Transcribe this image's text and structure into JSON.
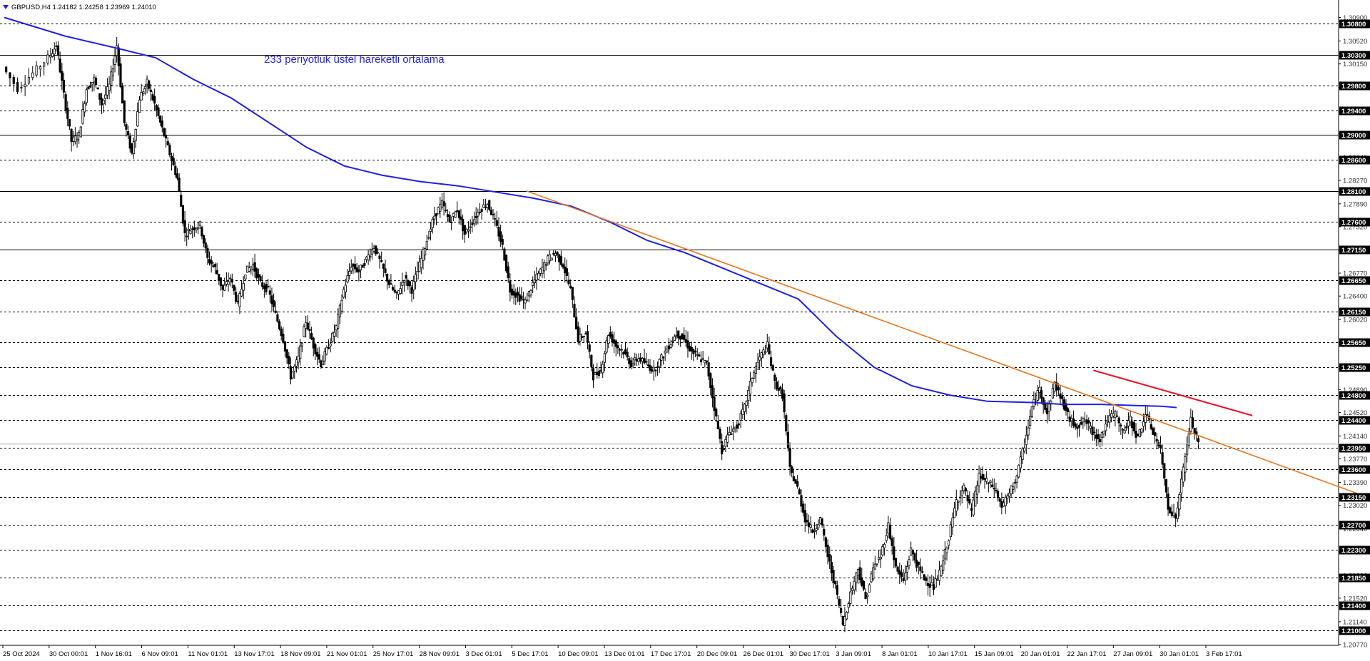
{
  "header": {
    "text": "GBPUSD,H4  1.24182 1.24258 1.23969 1.24010"
  },
  "annotation": {
    "text": "233 periyotluk üstel hareketli ortalama"
  },
  "colors": {
    "ema": "#1f1fe6",
    "trendline_orange": "#e8741c",
    "trendline_red": "#e8112a",
    "candle": "#000000",
    "grid": "#000000",
    "badge_bg": "#000000",
    "badge_text": "#ffffff"
  },
  "chart_data": {
    "type": "candlestick",
    "symbol": "GBPUSD",
    "timeframe": "H4",
    "ylim": [
      1.2077,
      1.3109
    ],
    "grid": "horizontal key levels",
    "y_tick_labels": [
      "1.30900",
      "1.30520",
      "1.30150",
      "1.29770",
      "1.29390",
      "1.29020",
      "1.28640",
      "1.28270",
      "1.27890",
      "1.27520",
      "1.27140",
      "1.26770",
      "1.26400",
      "1.26020",
      "1.25650",
      "1.25270",
      "1.24890",
      "1.24520",
      "1.24140",
      "1.23770",
      "1.23390",
      "1.23020",
      "1.22640",
      "1.22270",
      "1.21890",
      "1.21520",
      "1.21140",
      "1.20770"
    ],
    "levels": [
      {
        "value": 1.308,
        "label": "1.30800",
        "style": "dashed"
      },
      {
        "value": 1.303,
        "label": "1.30300",
        "style": "solid"
      },
      {
        "value": 1.298,
        "label": "1.29800",
        "style": "dashed"
      },
      {
        "value": 1.294,
        "label": "1.29400",
        "style": "dashed"
      },
      {
        "value": 1.29,
        "label": "1.29000",
        "style": "solid"
      },
      {
        "value": 1.286,
        "label": "1.28600",
        "style": "dashed"
      },
      {
        "value": 1.281,
        "label": "1.28100",
        "style": "solid"
      },
      {
        "value": 1.276,
        "label": "1.27600",
        "style": "dashed"
      },
      {
        "value": 1.2715,
        "label": "1.27150",
        "style": "solid"
      },
      {
        "value": 1.2665,
        "label": "1.26650",
        "style": "dashed"
      },
      {
        "value": 1.2615,
        "label": "1.26150",
        "style": "dashed"
      },
      {
        "value": 1.2565,
        "label": "1.25650",
        "style": "dashed"
      },
      {
        "value": 1.2525,
        "label": "1.25250",
        "style": "dashed"
      },
      {
        "value": 1.248,
        "label": "1.24800",
        "style": "dashed"
      },
      {
        "value": 1.244,
        "label": "1.24400",
        "style": "dashed"
      },
      {
        "value": 1.2395,
        "label": "1.23950",
        "style": "dashed"
      },
      {
        "value": 1.236,
        "label": "1.23600",
        "style": "dashed"
      },
      {
        "value": 1.2315,
        "label": "1.23150",
        "style": "dashed"
      },
      {
        "value": 1.227,
        "label": "1.22700",
        "style": "dashed"
      },
      {
        "value": 1.223,
        "label": "1.22300",
        "style": "dashed"
      },
      {
        "value": 1.2185,
        "label": "1.21850",
        "style": "dashed"
      },
      {
        "value": 1.214,
        "label": "1.21400",
        "style": "dashed"
      },
      {
        "value": 1.21,
        "label": "1.21000",
        "style": "dashed"
      }
    ],
    "x_labels": [
      "25 Oct 2024",
      "30 Oct 00:01",
      "1 Nov 16:01",
      "6 Nov 09:01",
      "11 Nov 01:01",
      "13 Nov 17:01",
      "18 Nov 09:01",
      "21 Nov 01:01",
      "25 Nov 17:01",
      "28 Nov 09:01",
      "3 Dec 01:01",
      "5 Dec 17:01",
      "10 Dec 09:01",
      "13 Dec 01:01",
      "17 Dec 17:01",
      "20 Dec 09:01",
      "26 Dec 01:01",
      "30 Dec 17:01",
      "3 Jan 09:01",
      "8 Jan 01:01",
      "10 Jan 17:01",
      "15 Jan 09:01",
      "20 Jan 01:01",
      "22 Jan 17:01",
      "27 Jan 09:01",
      "30 Jan 01:01",
      "3 Feb 17:01"
    ],
    "last_close": 1.2401,
    "price_path": [
      [
        0,
        1.301
      ],
      [
        2,
        1.2975
      ],
      [
        4,
        1.3
      ],
      [
        6,
        1.3025
      ],
      [
        7,
        1.3045
      ],
      [
        8,
        1.2965
      ],
      [
        9,
        1.289
      ],
      [
        10,
        1.29
      ],
      [
        11,
        1.2975
      ],
      [
        12,
        1.299
      ],
      [
        13,
        1.295
      ],
      [
        14,
        1.298
      ],
      [
        15,
        1.3045
      ],
      [
        16,
        1.292
      ],
      [
        17,
        1.287
      ],
      [
        18,
        1.296
      ],
      [
        19,
        1.2985
      ],
      [
        20,
        1.295
      ],
      [
        21,
        1.291
      ],
      [
        22,
        1.287
      ],
      [
        23,
        1.283
      ],
      [
        24,
        1.274
      ],
      [
        25,
        1.275
      ],
      [
        26,
        1.2755
      ],
      [
        27,
        1.27
      ],
      [
        28,
        1.2685
      ],
      [
        29,
        1.265
      ],
      [
        30,
        1.267
      ],
      [
        31,
        1.2625
      ],
      [
        32,
        1.268
      ],
      [
        33,
        1.269
      ],
      [
        34,
        1.266
      ],
      [
        35,
        1.265
      ],
      [
        36,
        1.261
      ],
      [
        37,
        1.257
      ],
      [
        38,
        1.251
      ],
      [
        39,
        1.254
      ],
      [
        40,
        1.26
      ],
      [
        41,
        1.256
      ],
      [
        42,
        1.253
      ],
      [
        43,
        1.256
      ],
      [
        44,
        1.259
      ],
      [
        45,
        1.265
      ],
      [
        46,
        1.269
      ],
      [
        47,
        1.268
      ],
      [
        48,
        1.27
      ],
      [
        49,
        1.272
      ],
      [
        50,
        1.269
      ],
      [
        51,
        1.266
      ],
      [
        52,
        1.264
      ],
      [
        53,
        1.267
      ],
      [
        54,
        1.265
      ],
      [
        55,
        1.269
      ],
      [
        56,
        1.273
      ],
      [
        57,
        1.277
      ],
      [
        58,
        1.279
      ],
      [
        59,
        1.276
      ],
      [
        60,
        1.278
      ],
      [
        61,
        1.274
      ],
      [
        62,
        1.276
      ],
      [
        63,
        1.278
      ],
      [
        64,
        1.279
      ],
      [
        65,
        1.276
      ],
      [
        66,
        1.272
      ],
      [
        67,
        1.265
      ],
      [
        68,
        1.264
      ],
      [
        69,
        1.263
      ],
      [
        70,
        1.266
      ],
      [
        71,
        1.268
      ],
      [
        72,
        1.27
      ],
      [
        73,
        1.271
      ],
      [
        74,
        1.269
      ],
      [
        75,
        1.265
      ],
      [
        76,
        1.257
      ],
      [
        77,
        1.258
      ],
      [
        78,
        1.251
      ],
      [
        79,
        1.252
      ],
      [
        80,
        1.258
      ],
      [
        81,
        1.256
      ],
      [
        82,
        1.255
      ],
      [
        83,
        1.253
      ],
      [
        84,
        1.254
      ],
      [
        85,
        1.253
      ],
      [
        86,
        1.252
      ],
      [
        87,
        1.254
      ],
      [
        88,
        1.256
      ],
      [
        89,
        1.258
      ],
      [
        90,
        1.257
      ],
      [
        91,
        1.255
      ],
      [
        92,
        1.254
      ],
      [
        93,
        1.253
      ],
      [
        94,
        1.246
      ],
      [
        95,
        1.239
      ],
      [
        96,
        1.242
      ],
      [
        97,
        1.243
      ],
      [
        98,
        1.246
      ],
      [
        99,
        1.251
      ],
      [
        100,
        1.254
      ],
      [
        101,
        1.256
      ],
      [
        102,
        1.25
      ],
      [
        103,
        1.248
      ],
      [
        104,
        1.236
      ],
      [
        105,
        1.233
      ],
      [
        106,
        1.228
      ],
      [
        107,
        1.226
      ],
      [
        108,
        1.228
      ],
      [
        109,
        1.222
      ],
      [
        110,
        1.217
      ],
      [
        111,
        1.211
      ],
      [
        112,
        1.216
      ],
      [
        113,
        1.22
      ],
      [
        114,
        1.215
      ],
      [
        115,
        1.22
      ],
      [
        116,
        1.222
      ],
      [
        117,
        1.227
      ],
      [
        118,
        1.22
      ],
      [
        119,
        1.218
      ],
      [
        120,
        1.223
      ],
      [
        121,
        1.22
      ],
      [
        122,
        1.218
      ],
      [
        123,
        1.217
      ],
      [
        124,
        1.22
      ],
      [
        125,
        1.225
      ],
      [
        126,
        1.231
      ],
      [
        127,
        1.233
      ],
      [
        128,
        1.229
      ],
      [
        129,
        1.235
      ],
      [
        130,
        1.234
      ],
      [
        131,
        1.233
      ],
      [
        132,
        1.23
      ],
      [
        133,
        1.232
      ],
      [
        134,
        1.235
      ],
      [
        135,
        1.24
      ],
      [
        136,
        1.246
      ],
      [
        137,
        1.249
      ],
      [
        138,
        1.245
      ],
      [
        139,
        1.25
      ],
      [
        140,
        1.247
      ],
      [
        141,
        1.244
      ],
      [
        142,
        1.243
      ],
      [
        143,
        1.244
      ],
      [
        144,
        1.242
      ],
      [
        145,
        1.241
      ],
      [
        146,
        1.244
      ],
      [
        147,
        1.245
      ],
      [
        148,
        1.242
      ],
      [
        149,
        1.244
      ],
      [
        150,
        1.241
      ],
      [
        151,
        1.245
      ],
      [
        152,
        1.242
      ],
      [
        153,
        1.239
      ],
      [
        154,
        1.23
      ],
      [
        155,
        1.228
      ],
      [
        156,
        1.236
      ],
      [
        157,
        1.244
      ],
      [
        158,
        1.2401
      ]
    ],
    "ema_233": [
      [
        0,
        1.309
      ],
      [
        8,
        1.306
      ],
      [
        15,
        1.304
      ],
      [
        20,
        1.3025
      ],
      [
        25,
        1.299
      ],
      [
        30,
        1.296
      ],
      [
        35,
        1.292
      ],
      [
        40,
        1.288
      ],
      [
        45,
        1.285
      ],
      [
        50,
        1.2835
      ],
      [
        55,
        1.2825
      ],
      [
        60,
        1.2818
      ],
      [
        65,
        1.2808
      ],
      [
        70,
        1.2798
      ],
      [
        75,
        1.2785
      ],
      [
        80,
        1.276
      ],
      [
        85,
        1.273
      ],
      [
        90,
        1.271
      ],
      [
        95,
        1.2685
      ],
      [
        100,
        1.266
      ],
      [
        105,
        1.2635
      ],
      [
        110,
        1.2575
      ],
      [
        115,
        1.2525
      ],
      [
        120,
        1.2495
      ],
      [
        125,
        1.248
      ],
      [
        130,
        1.247
      ],
      [
        136,
        1.2468
      ],
      [
        140,
        1.2465
      ],
      [
        145,
        1.2465
      ],
      [
        150,
        1.2463
      ],
      [
        153,
        1.2462
      ],
      [
        155,
        1.246
      ]
    ],
    "trendlines": [
      {
        "name": "orange",
        "from": [
          69,
          1.281
        ],
        "to": [
          187,
          1.2285
        ]
      },
      {
        "name": "red",
        "from": [
          144,
          1.252
        ],
        "to": [
          165,
          1.2447
        ]
      }
    ]
  }
}
